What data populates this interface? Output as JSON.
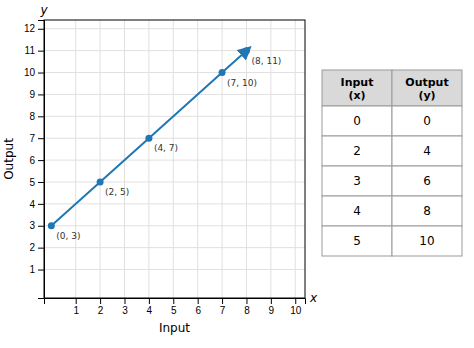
{
  "chart_data": [
    {
      "type": "line",
      "x": [
        0,
        2,
        4,
        7,
        8
      ],
      "values": [
        3,
        5,
        7,
        10,
        11
      ],
      "value_labels": [
        "(0, 3)",
        "(2, 5)",
        "(4, 7)",
        "(7, 10)",
        "(8, 11)"
      ],
      "data_labels": true,
      "marker": "circle",
      "xlim": [
        -0.3,
        10.4
      ],
      "ylim": [
        -0.3,
        12.4
      ],
      "xticks": [
        1,
        2,
        3,
        4,
        5,
        6,
        7,
        8,
        9,
        10
      ],
      "yticks": [
        1,
        2,
        3,
        4,
        5,
        6,
        7,
        8,
        9,
        10,
        11,
        12
      ],
      "xlabel": "Input",
      "ylabel": "Output",
      "annotations": [
        "x",
        "y"
      ],
      "grid": true
    },
    {
      "type": "table",
      "series": [
        {
          "name": "Input\n(x)",
          "values": [
            0,
            2,
            3,
            4,
            5
          ]
        },
        {
          "name": "Output\n(y)",
          "values": [
            0,
            4,
            6,
            8,
            10
          ]
        }
      ]
    }
  ]
}
